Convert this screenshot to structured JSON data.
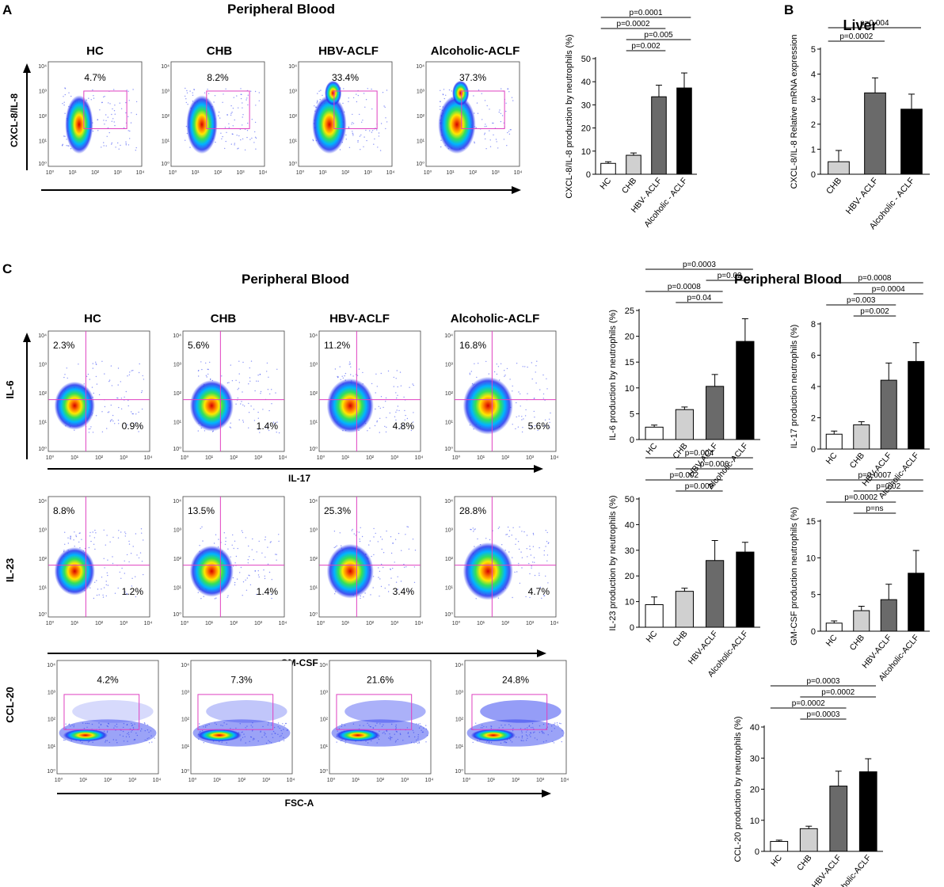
{
  "panel_letters": {
    "a": "A",
    "b": "B",
    "c": "C"
  },
  "section_titles": {
    "a": "Peripheral Blood",
    "b": "Liver",
    "c_left": "Peripheral Blood",
    "c_right": "Peripheral Blood"
  },
  "groups": [
    "HC",
    "CHB",
    "HBV-ACLF",
    "Alcoholic-ACLF"
  ],
  "tick_labels": [
    "10⁰",
    "10¹",
    "10²",
    "10³",
    "10⁴"
  ],
  "flow": {
    "a": {
      "y_axis": "CXCL-8/IL-8",
      "type": "gate",
      "pcts": [
        "4.7%",
        "8.2%",
        "33.4%",
        "37.3%"
      ]
    },
    "il6": {
      "y_axis": "IL-6",
      "x_axis": "IL-17",
      "type": "quad",
      "upper": [
        "2.3%",
        "5.6%",
        "11.2%",
        "16.8%"
      ],
      "lower": [
        "0.9%",
        "1.4%",
        "4.8%",
        "5.6%"
      ]
    },
    "il23": {
      "y_axis": "IL-23",
      "x_axis": "GM-CSF",
      "type": "quad",
      "upper": [
        "8.8%",
        "13.5%",
        "25.3%",
        "28.8%"
      ],
      "lower": [
        "1.2%",
        "1.4%",
        "3.4%",
        "4.7%"
      ]
    },
    "ccl20": {
      "y_axis": "CCL-20",
      "x_axis": "FSC-A",
      "type": "gate",
      "pcts": [
        "4.2%",
        "7.3%",
        "21.6%",
        "24.8%"
      ]
    }
  },
  "chart_data": [
    {
      "id": "a-cxcl8",
      "type": "bar",
      "ylabel": "CXCL-8/IL-8 production by neutrophils (%)",
      "categories": [
        "HC",
        "CHB",
        "HBV- ACLF",
        "Alcoholic - ACLF"
      ],
      "values": [
        4.7,
        8.2,
        33.5,
        37.3
      ],
      "errors": [
        0.7,
        1.0,
        5.0,
        6.5
      ],
      "ylim": [
        0,
        50
      ],
      "yticks": [
        0,
        10,
        20,
        30,
        40,
        50
      ],
      "colors": [
        "#ffffff",
        "#d0d0d0",
        "#6a6a6a",
        "#000000"
      ],
      "brackets": [
        {
          "from": 0,
          "to": 3,
          "label": "p=0.0001"
        },
        {
          "from": 0,
          "to": 2,
          "label": "p=0.0002"
        },
        {
          "from": 1,
          "to": 3,
          "label": "p=0.005"
        },
        {
          "from": 1,
          "to": 2,
          "label": "p=0.002"
        }
      ]
    },
    {
      "id": "b-liver",
      "type": "bar",
      "ylabel": "CXCL-8/IL-8 Relative mRNA expression",
      "categories": [
        "CHB",
        "HBV- ACLF",
        "Alcoholic - ACLF"
      ],
      "values": [
        0.5,
        3.25,
        2.6
      ],
      "errors": [
        0.45,
        0.6,
        0.6
      ],
      "ylim": [
        0,
        5
      ],
      "yticks": [
        0,
        1,
        2,
        3,
        4,
        5
      ],
      "colors": [
        "#d0d0d0",
        "#6a6a6a",
        "#000000"
      ],
      "brackets": [
        {
          "from": 0,
          "to": 2,
          "label": "p=0.004"
        },
        {
          "from": 0,
          "to": 1,
          "label": "p=0.0002"
        }
      ]
    },
    {
      "id": "c-il6",
      "type": "bar",
      "ylabel": "IL-6 production by neutrophils (%)",
      "categories": [
        "HC",
        "CHB",
        "HBV-ACLF",
        "Alcoholic-ACLF"
      ],
      "values": [
        2.4,
        5.8,
        10.3,
        19.0
      ],
      "errors": [
        0.4,
        0.5,
        2.3,
        4.4
      ],
      "ylim": [
        0,
        25
      ],
      "yticks": [
        0,
        5,
        10,
        15,
        20,
        25
      ],
      "colors": [
        "#ffffff",
        "#d0d0d0",
        "#6a6a6a",
        "#000000"
      ],
      "brackets": [
        {
          "from": 0,
          "to": 3,
          "label": "p=0.0003"
        },
        {
          "from": 2,
          "to": 3,
          "label": "p=0.02"
        },
        {
          "from": 0,
          "to": 2,
          "label": "p=0.0008"
        },
        {
          "from": 1,
          "to": 2,
          "label": "p=0.04"
        }
      ]
    },
    {
      "id": "c-il17",
      "type": "bar",
      "ylabel": "IL-17 production neutrophils (%)",
      "categories": [
        "HC",
        "CHB",
        "HBV-ACLF",
        "Alcoholic-ACLF"
      ],
      "values": [
        0.95,
        1.55,
        4.4,
        5.6
      ],
      "errors": [
        0.2,
        0.2,
        1.1,
        1.2
      ],
      "ylim": [
        0,
        8
      ],
      "yticks": [
        0,
        2,
        4,
        6,
        8
      ],
      "colors": [
        "#ffffff",
        "#d0d0d0",
        "#6a6a6a",
        "#000000"
      ],
      "brackets": [
        {
          "from": 0,
          "to": 3,
          "label": "p=0.0008"
        },
        {
          "from": 1,
          "to": 3,
          "label": "p=0.0004"
        },
        {
          "from": 0,
          "to": 2,
          "label": "p=0.003"
        },
        {
          "from": 1,
          "to": 2,
          "label": "p=0.002"
        }
      ]
    },
    {
      "id": "c-il23",
      "type": "bar",
      "ylabel": "IL-23 production by neutrophils (%)",
      "categories": [
        "HC",
        "CHB",
        "HBV-ACLF",
        "Alcoholic-ACLF"
      ],
      "values": [
        8.8,
        14.0,
        26.0,
        29.3
      ],
      "errors": [
        3.0,
        1.2,
        7.8,
        3.8
      ],
      "ylim": [
        0,
        50
      ],
      "yticks": [
        0,
        10,
        20,
        30,
        40,
        50
      ],
      "colors": [
        "#ffffff",
        "#d0d0d0",
        "#6a6a6a",
        "#000000"
      ],
      "brackets": [
        {
          "from": 0,
          "to": 3,
          "label": "p=0.004"
        },
        {
          "from": 1,
          "to": 3,
          "label": "p=0.006"
        },
        {
          "from": 0,
          "to": 2,
          "label": "p=0.002"
        },
        {
          "from": 1,
          "to": 2,
          "label": "p=0.009"
        }
      ]
    },
    {
      "id": "c-gmcsf",
      "type": "bar",
      "ylabel": "GM-CSF production neutrophils (%)",
      "categories": [
        "HC",
        "CHB",
        "HBV-ACLF",
        "Alcoholic-ACLF"
      ],
      "values": [
        1.1,
        2.8,
        4.3,
        7.9
      ],
      "errors": [
        0.3,
        0.6,
        2.1,
        3.1
      ],
      "ylim": [
        0,
        15
      ],
      "yticks": [
        0,
        5,
        10,
        15
      ],
      "colors": [
        "#ffffff",
        "#d0d0d0",
        "#6a6a6a",
        "#000000"
      ],
      "brackets": [
        {
          "from": 0,
          "to": 3,
          "label": "p=0.0007"
        },
        {
          "from": 1,
          "to": 3,
          "label": "p=0.02"
        },
        {
          "from": 0,
          "to": 2,
          "label": "p=0.0002"
        },
        {
          "from": 1,
          "to": 2,
          "label": "p=ns"
        }
      ]
    },
    {
      "id": "c-ccl20",
      "type": "bar",
      "ylabel": "CCL-20 production by neutrophils (%)",
      "categories": [
        "HC",
        "CHB",
        "HBV-ACLF",
        "Alcoholic-ACLF"
      ],
      "values": [
        3.2,
        7.3,
        21.0,
        25.6
      ],
      "errors": [
        0.4,
        0.8,
        4.8,
        4.2
      ],
      "ylim": [
        0,
        40
      ],
      "yticks": [
        0,
        10,
        20,
        30,
        40
      ],
      "colors": [
        "#ffffff",
        "#d0d0d0",
        "#6a6a6a",
        "#000000"
      ],
      "brackets": [
        {
          "from": 0,
          "to": 3,
          "label": "p=0.0003"
        },
        {
          "from": 1,
          "to": 3,
          "label": "p=0.0002"
        },
        {
          "from": 0,
          "to": 2,
          "label": "p=0.0002"
        },
        {
          "from": 1,
          "to": 2,
          "label": "p=0.0003"
        }
      ]
    }
  ]
}
